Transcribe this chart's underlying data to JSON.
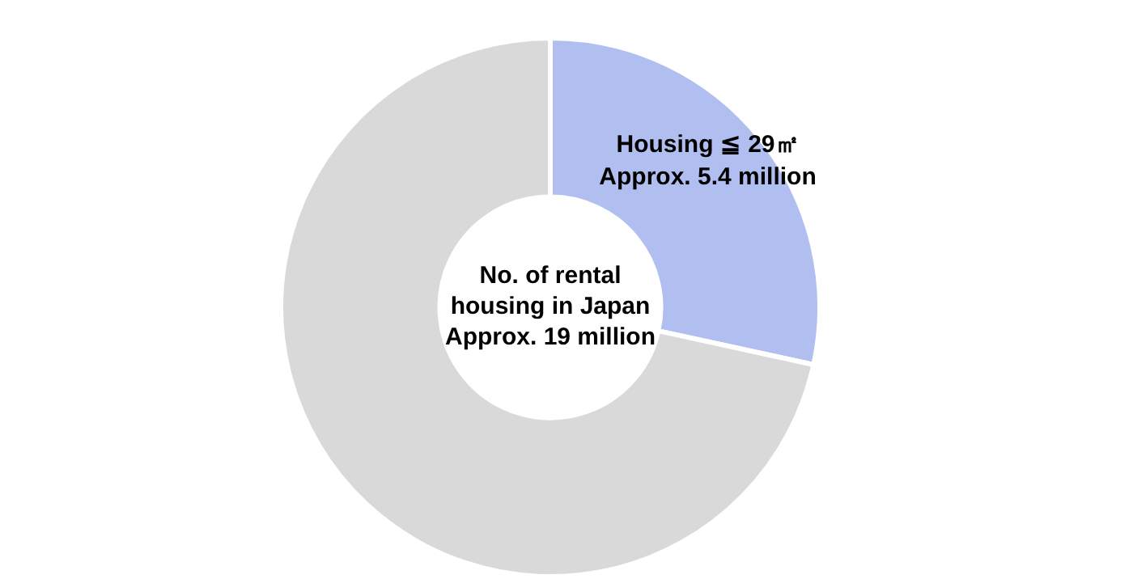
{
  "chart_data": {
    "type": "donut",
    "categories": [
      "Housing ≦ 29㎡",
      null
    ],
    "values": [
      5.4,
      13.6
    ],
    "colors": [
      "#b0bff0",
      "#d9d9d9"
    ],
    "value_labels": [
      "Approx. 5.4 million",
      null
    ],
    "annotations": [
      "No. of rental housing in Japan Approx. 19 million"
    ],
    "legend": false
  }
}
